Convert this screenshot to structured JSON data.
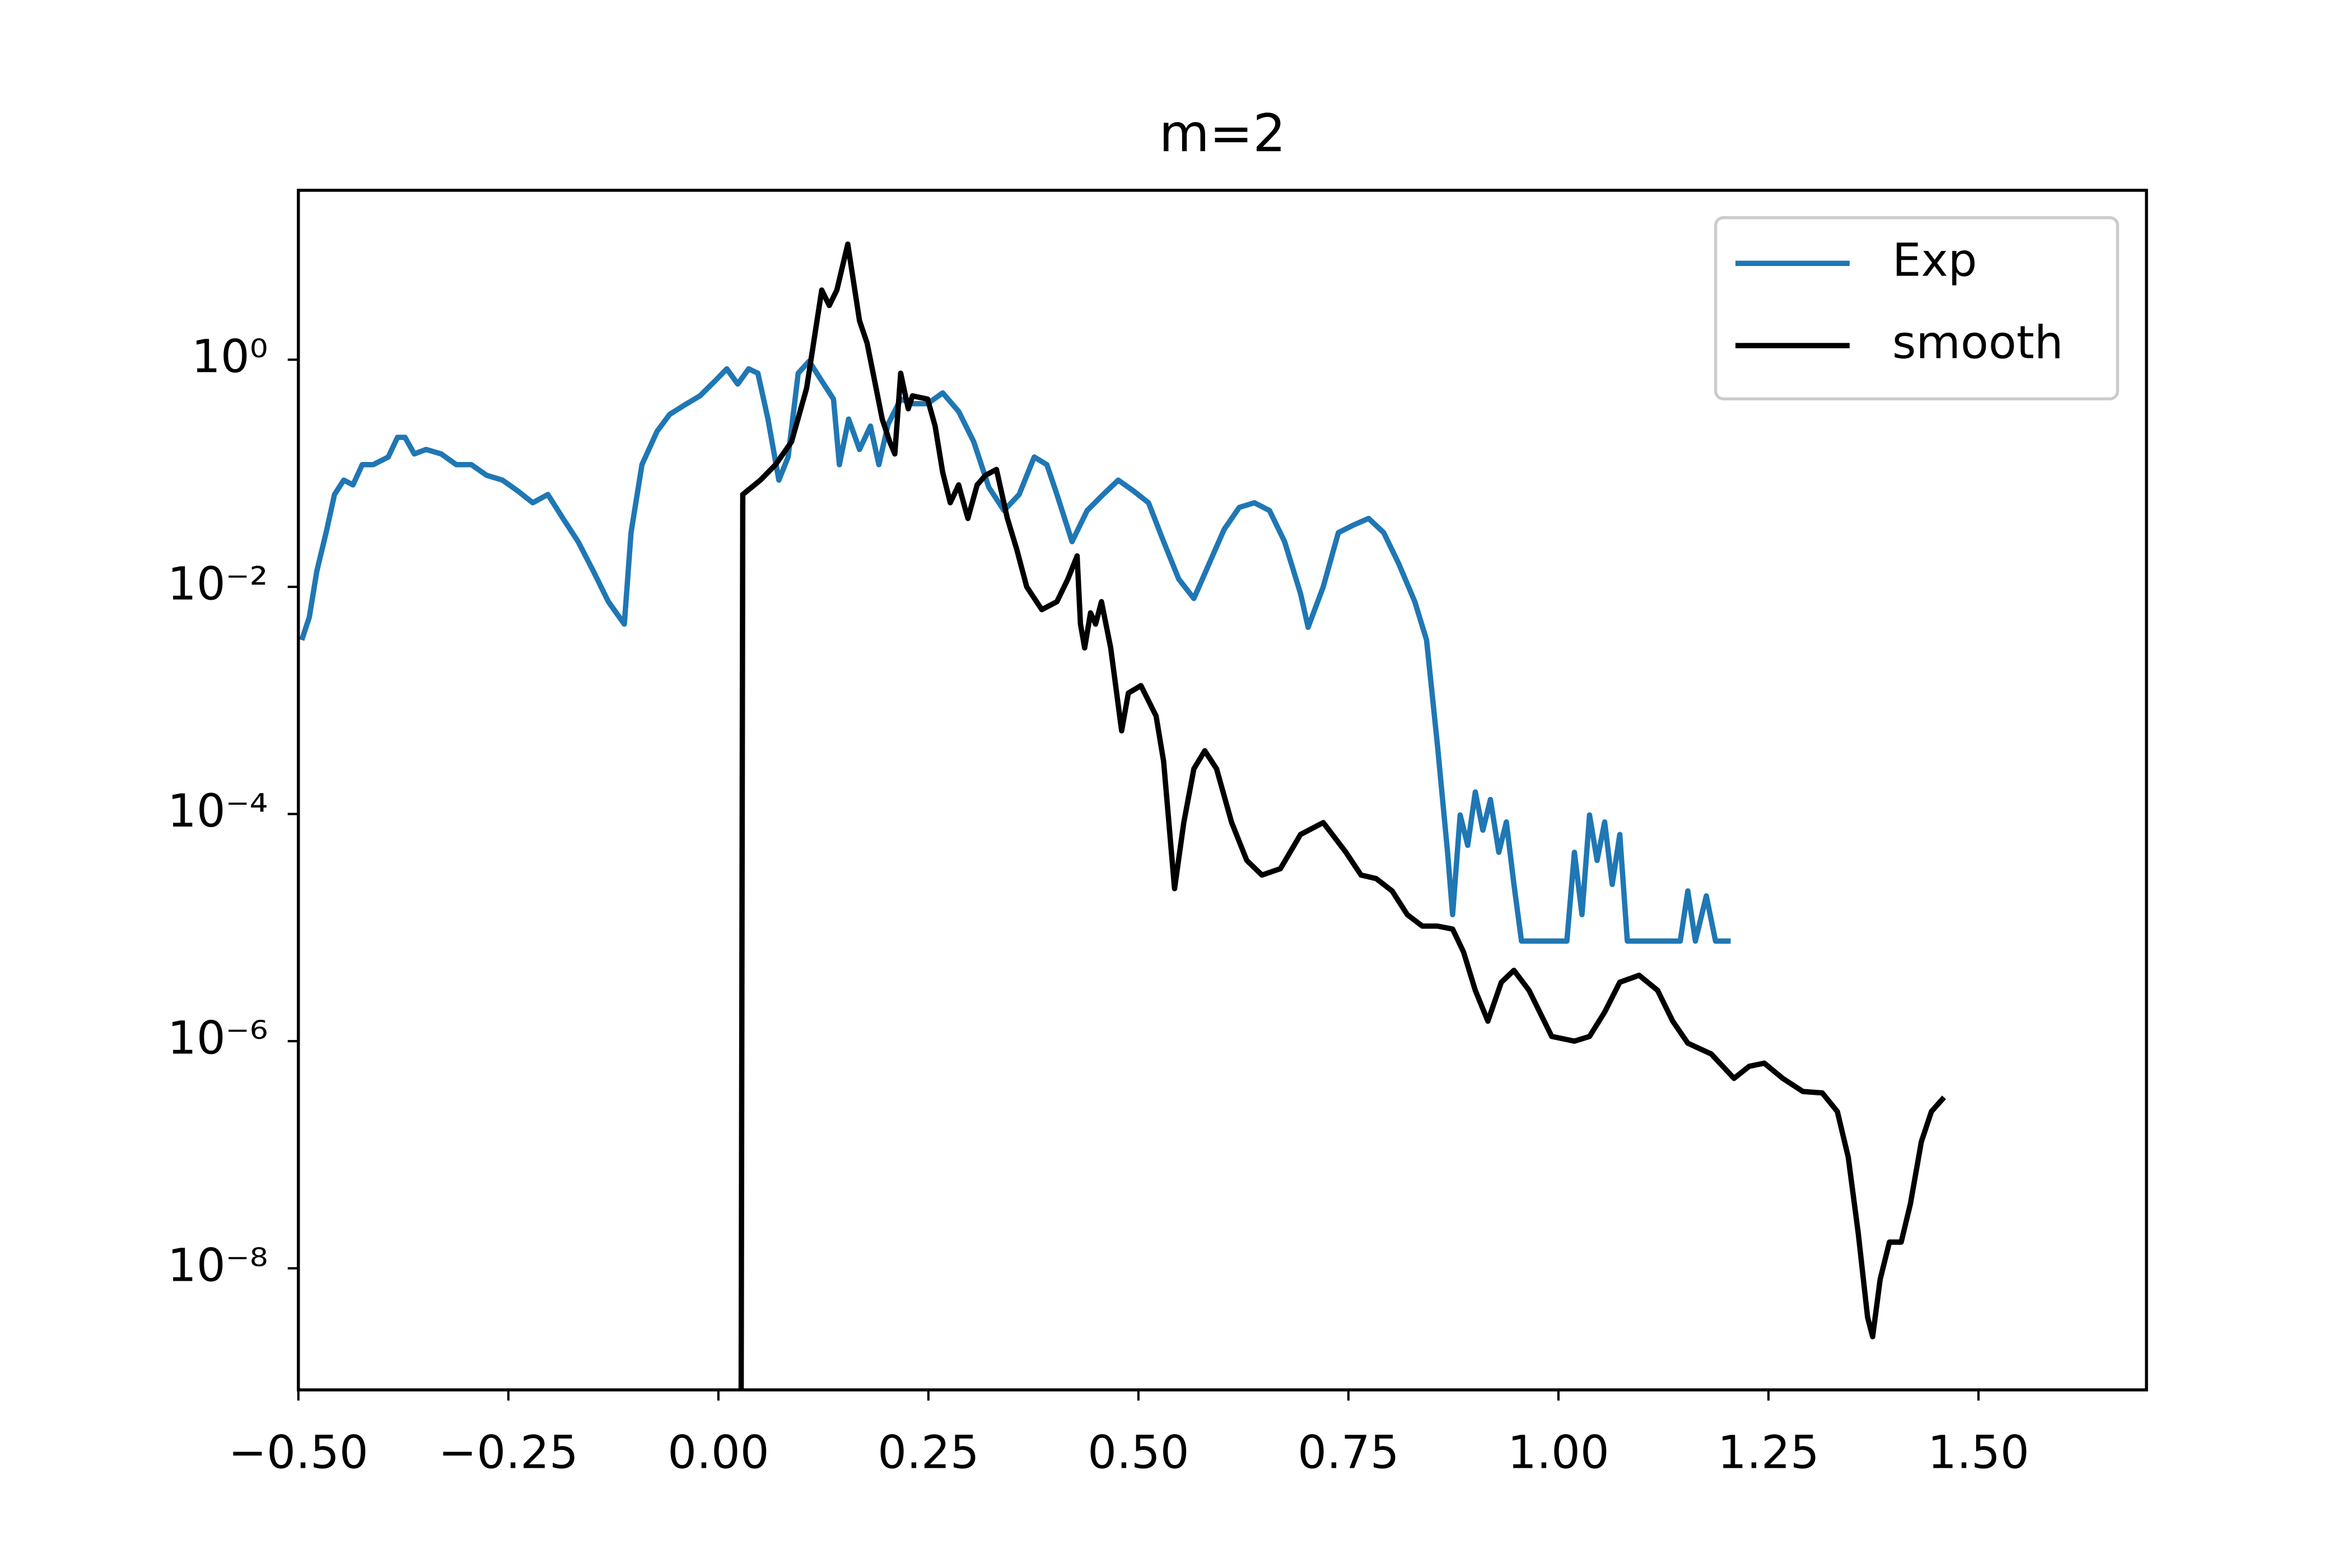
{
  "chart_data": {
    "type": "line",
    "title": "m=2",
    "log_y": true,
    "legend": "upper right",
    "xlim": [
      -0.5,
      1.7
    ],
    "ylim": [
      8.5e-10,
      31
    ],
    "xticks": [
      {
        "value": -0.5,
        "label": "−0.50"
      },
      {
        "value": -0.25,
        "label": "−0.25"
      },
      {
        "value": 0,
        "label": "0.00"
      },
      0.25,
      {
        "value": 0.5,
        "label": "0.50"
      },
      0.75,
      {
        "value": 1,
        "label": "1.00"
      },
      1.25,
      {
        "value": 1.5,
        "label": "1.50"
      }
    ],
    "yticks": [
      {
        "value": 1,
        "label": "10⁰"
      },
      {
        "value": 0.01,
        "label": "10⁻²"
      },
      {
        "value": 0.0001,
        "label": "10⁻⁴"
      },
      {
        "value": 1e-06,
        "label": "10⁻⁶"
      },
      {
        "value": 1e-08,
        "label": "10⁻⁸"
      }
    ],
    "series": [
      {
        "name": "Exp",
        "color": "#1f77b4",
        "x": [
          -0.496,
          -0.487,
          -0.478,
          -0.467,
          -0.457,
          -0.446,
          -0.435,
          -0.424,
          -0.411,
          -0.393,
          -0.382,
          -0.373,
          -0.362,
          -0.348,
          -0.33,
          -0.312,
          -0.294,
          -0.276,
          -0.257,
          -0.239,
          -0.221,
          -0.203,
          -0.185,
          -0.167,
          -0.149,
          -0.131,
          -0.112,
          -0.104,
          -0.091,
          -0.073,
          -0.058,
          -0.04,
          -0.022,
          -0.004,
          0.01,
          0.023,
          0.036,
          0.047,
          0.059,
          0.072,
          0.083,
          0.095,
          0.108,
          0.123,
          0.137,
          0.144,
          0.155,
          0.168,
          0.181,
          0.191,
          0.202,
          0.217,
          0.231,
          0.249,
          0.267,
          0.286,
          0.304,
          0.322,
          0.34,
          0.358,
          0.376,
          0.391,
          0.403,
          0.421,
          0.439,
          0.458,
          0.476,
          0.494,
          0.512,
          0.53,
          0.548,
          0.566,
          0.584,
          0.602,
          0.62,
          0.638,
          0.656,
          0.674,
          0.693,
          0.702,
          0.72,
          0.738,
          0.756,
          0.774,
          0.792,
          0.81,
          0.829,
          0.843,
          0.856,
          0.868,
          0.874,
          0.883,
          0.892,
          0.901,
          0.91,
          0.919,
          0.929,
          0.938,
          0.947,
          0.956,
          1.01,
          1.019,
          1.028,
          1.037,
          1.046,
          1.055,
          1.064,
          1.073,
          1.082,
          1.145,
          1.154,
          1.163,
          1.176,
          1.187,
          1.205
        ],
        "values": [
          0.0034,
          0.0054,
          0.0138,
          0.03,
          0.065,
          0.087,
          0.079,
          0.119,
          0.119,
          0.139,
          0.207,
          0.207,
          0.148,
          0.162,
          0.148,
          0.119,
          0.119,
          0.096,
          0.087,
          0.07,
          0.055,
          0.065,
          0.04,
          0.025,
          0.0138,
          0.0074,
          0.0047,
          0.03,
          0.119,
          0.234,
          0.33,
          0.4,
          0.48,
          0.65,
          0.83,
          0.61,
          0.83,
          0.76,
          0.3,
          0.087,
          0.139,
          0.76,
          0.97,
          0.65,
          0.45,
          0.119,
          0.3,
          0.162,
          0.26,
          0.119,
          0.27,
          0.45,
          0.41,
          0.41,
          0.51,
          0.35,
          0.189,
          0.075,
          0.047,
          0.065,
          0.139,
          0.119,
          0.065,
          0.025,
          0.047,
          0.065,
          0.087,
          0.07,
          0.055,
          0.025,
          0.0117,
          0.0079,
          0.0159,
          0.032,
          0.05,
          0.055,
          0.047,
          0.025,
          0.0087,
          0.0044,
          0.01,
          0.03,
          0.035,
          0.04,
          0.03,
          0.0159,
          0.0074,
          0.0034,
          0.0004,
          4.6e-05,
          1.3e-05,
          9.8e-05,
          5.3e-05,
          0.000156,
          7.2e-05,
          0.000134,
          4.6e-05,
          8.5e-05,
          2.4e-05,
          7.6e-06,
          7.6e-06,
          4.6e-05,
          1.3e-05,
          9.8e-05,
          3.9e-05,
          8.5e-05,
          2.4e-05,
          6.6e-05,
          7.6e-06,
          7.6e-06,
          2.1e-05,
          7.6e-06,
          1.9e-05,
          7.6e-06,
          7.6e-06
        ]
      },
      {
        "name": "smooth",
        "color": "#000000",
        "x": [
          0.027,
          0.029,
          0.05,
          0.068,
          0.087,
          0.105,
          0.123,
          0.132,
          0.141,
          0.154,
          0.168,
          0.177,
          0.186,
          0.195,
          0.204,
          0.21,
          0.217,
          0.226,
          0.231,
          0.249,
          0.258,
          0.267,
          0.276,
          0.286,
          0.297,
          0.308,
          0.318,
          0.331,
          0.344,
          0.355,
          0.367,
          0.385,
          0.403,
          0.416,
          0.427,
          0.431,
          0.436,
          0.443,
          0.449,
          0.456,
          0.467,
          0.48,
          0.488,
          0.503,
          0.521,
          0.53,
          0.543,
          0.554,
          0.566,
          0.579,
          0.593,
          0.611,
          0.629,
          0.647,
          0.669,
          0.693,
          0.72,
          0.747,
          0.765,
          0.783,
          0.802,
          0.82,
          0.838,
          0.856,
          0.874,
          0.887,
          0.901,
          0.916,
          0.932,
          0.947,
          0.965,
          0.992,
          1.019,
          1.037,
          1.055,
          1.073,
          1.096,
          1.118,
          1.136,
          1.154,
          1.182,
          1.209,
          1.227,
          1.245,
          1.267,
          1.291,
          1.314,
          1.332,
          1.345,
          1.357,
          1.368,
          1.374,
          1.383,
          1.394,
          1.408,
          1.419,
          1.432,
          1.444,
          1.459
        ],
        "values": [
          3e-10,
          0.065,
          0.087,
          0.119,
          0.189,
          0.56,
          4.1,
          3.0,
          4.1,
          10.4,
          2.2,
          1.4,
          0.65,
          0.3,
          0.189,
          0.148,
          0.76,
          0.37,
          0.48,
          0.45,
          0.26,
          0.102,
          0.055,
          0.079,
          0.04,
          0.079,
          0.096,
          0.108,
          0.04,
          0.0216,
          0.01,
          0.0063,
          0.0074,
          0.0117,
          0.0187,
          0.0047,
          0.0029,
          0.0059,
          0.0047,
          0.0074,
          0.0029,
          0.00054,
          0.00116,
          0.00135,
          0.00073,
          0.00029,
          2.2e-05,
          8.4e-05,
          0.00025,
          0.00036,
          0.00025,
          8.4e-05,
          3.9e-05,
          2.9e-05,
          3.3e-05,
          6.6e-05,
          8.4e-05,
          4.6e-05,
          2.9e-05,
          2.7e-05,
          2.1e-05,
          1.3e-05,
          1.03e-05,
          1.03e-05,
          9.7e-06,
          6.1e-06,
          2.8e-06,
          1.5e-06,
          3.3e-06,
          4.2e-06,
          2.8e-06,
          1.1e-06,
          1e-06,
          1.1e-06,
          1.8e-06,
          3.3e-06,
          3.8e-06,
          2.8e-06,
          1.5e-06,
          9.6e-07,
          7.7e-07,
          4.7e-07,
          6e-07,
          6.4e-07,
          4.7e-07,
          3.6e-07,
          3.5e-07,
          2.4e-07,
          9.5e-08,
          2e-08,
          3.7e-09,
          2.5e-09,
          8e-09,
          1.7e-08,
          1.7e-08,
          3.7e-08,
          1.3e-07,
          2.4e-07,
          3.2e-07
        ]
      }
    ]
  }
}
